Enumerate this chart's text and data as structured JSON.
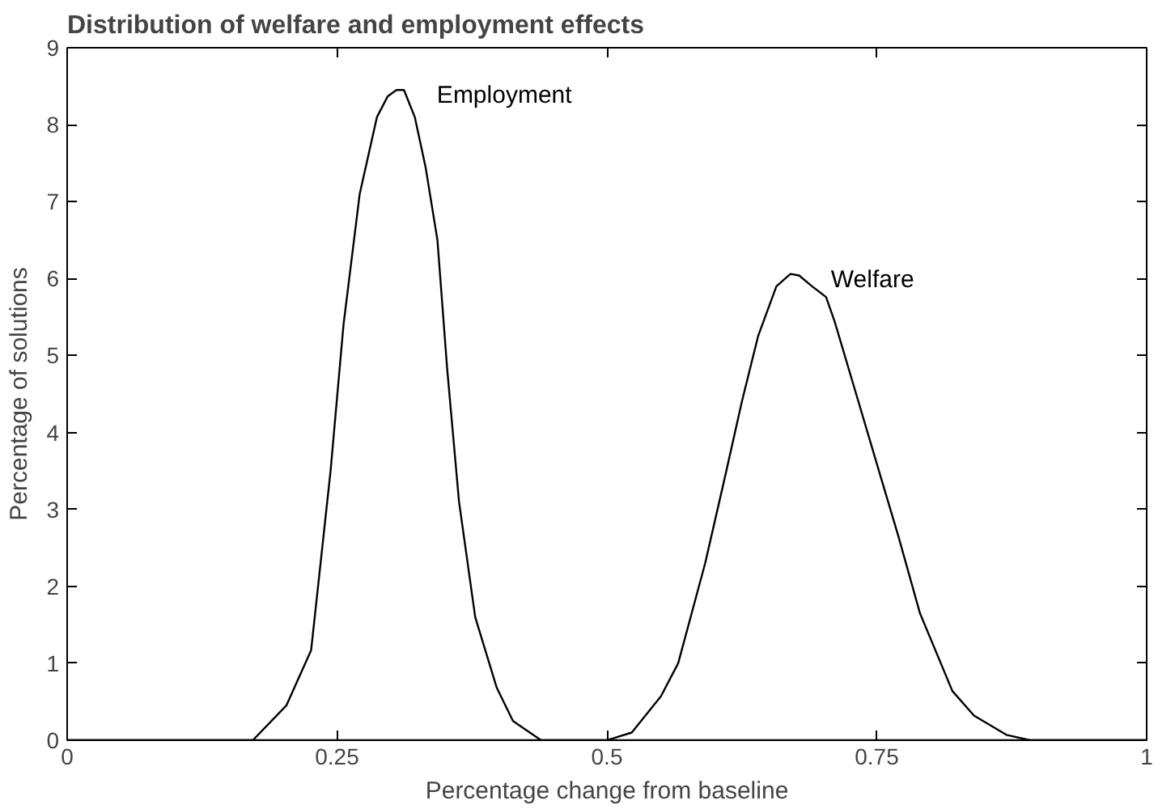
{
  "chart_data": {
    "type": "line",
    "title": "Distribution of welfare and employment effects",
    "xlabel": "Percentage change from baseline",
    "ylabel": "Percentage of solutions",
    "xlim": [
      0,
      1
    ],
    "xticks": [
      0,
      0.25,
      0.5,
      0.75,
      1
    ],
    "ylim": [
      0,
      9
    ],
    "yticks": [
      0,
      1,
      2,
      3,
      4,
      5,
      6,
      7,
      8,
      9
    ],
    "grid": false,
    "legend": false,
    "marker": "none",
    "line_style": "solid",
    "series": [
      {
        "name": "Employment",
        "color": "#000000",
        "x": [
          0,
          0.172,
          0.203,
          0.226,
          0.244,
          0.256,
          0.271,
          0.287,
          0.297,
          0.305,
          0.312,
          0.322,
          0.332,
          0.343,
          0.352,
          0.363,
          0.378,
          0.398,
          0.413,
          0.439,
          1
        ],
        "values": [
          0,
          0,
          0.45,
          1.17,
          3.5,
          5.4,
          7.1,
          8.1,
          8.37,
          8.45,
          8.45,
          8.1,
          7.45,
          6.5,
          4.83,
          3.1,
          1.6,
          0.68,
          0.25,
          0,
          0
        ]
      },
      {
        "name": "Welfare",
        "color": "#000000",
        "x": [
          0,
          0.5,
          0.523,
          0.55,
          0.566,
          0.591,
          0.609,
          0.625,
          0.64,
          0.657,
          0.67,
          0.678,
          0.69,
          0.703,
          0.711,
          0.733,
          0.752,
          0.77,
          0.79,
          0.82,
          0.84,
          0.87,
          0.892,
          1
        ],
        "values": [
          0,
          0,
          0.1,
          0.57,
          1.0,
          2.3,
          3.4,
          4.4,
          5.25,
          5.9,
          6.06,
          6.04,
          5.9,
          5.76,
          5.44,
          4.4,
          3.5,
          2.65,
          1.65,
          0.64,
          0.32,
          0.07,
          0,
          0
        ]
      }
    ]
  }
}
